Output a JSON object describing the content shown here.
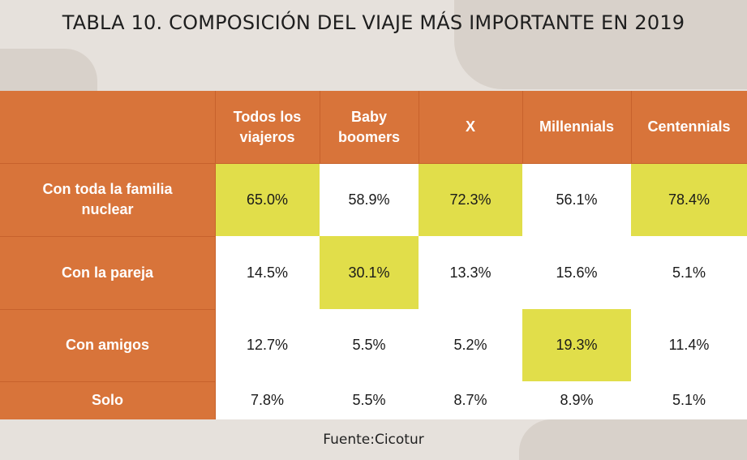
{
  "title": "TABLA 10. COMPOSICIÓN DEL VIAJE MÁS IMPORTANTE EN 2019",
  "source": "Fuente:Cicotur",
  "colors": {
    "header": "#d8743a",
    "highlight": "#e1de4a",
    "cell": "#ffffff"
  },
  "chart_data": {
    "type": "table",
    "columns": [
      "Todos los viajeros",
      "Baby boomers",
      "X",
      "Millennials",
      "Centennials"
    ],
    "rows": [
      {
        "label": "Con toda la familia nuclear",
        "values": [
          "65.0%",
          "58.9%",
          "72.3%",
          "56.1%",
          "78.4%"
        ],
        "highlight": [
          true,
          false,
          true,
          false,
          true
        ]
      },
      {
        "label": "Con la pareja",
        "values": [
          "14.5%",
          "30.1%",
          "13.3%",
          "15.6%",
          "5.1%"
        ],
        "highlight": [
          false,
          true,
          false,
          false,
          false
        ]
      },
      {
        "label": "Con amigos",
        "values": [
          "12.7%",
          "5.5%",
          "5.2%",
          "19.3%",
          "11.4%"
        ],
        "highlight": [
          false,
          false,
          false,
          true,
          false
        ]
      },
      {
        "label": "Solo",
        "values": [
          "7.8%",
          "5.5%",
          "8.7%",
          "8.9%",
          "5.1%"
        ],
        "highlight": [
          false,
          false,
          false,
          false,
          false
        ]
      }
    ]
  }
}
